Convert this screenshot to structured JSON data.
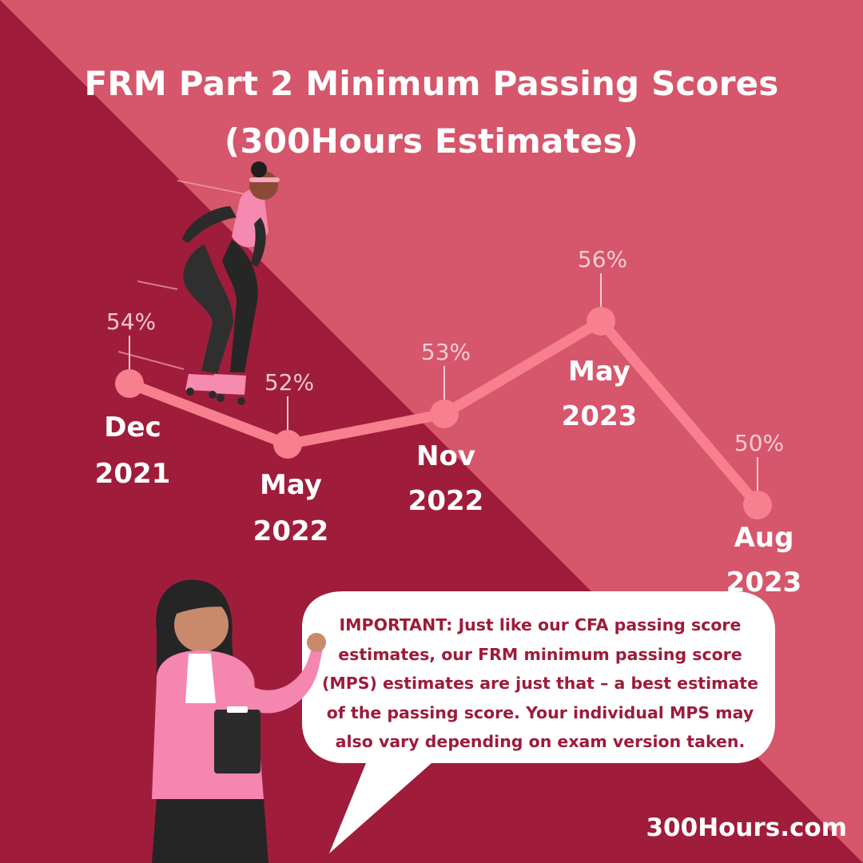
{
  "title_lines": [
    "FRM Part 2 Minimum Passing Scores",
    "(300Hours Estimates)"
  ],
  "colors": {
    "dark_bg": "#9f1d3b",
    "light_bg": "#d6566b",
    "line": "#f87f8e",
    "bubble": "#ffffff",
    "bubble_text": "#9d1b3a"
  },
  "chart_data": {
    "type": "line",
    "title": "FRM Part 2 Minimum Passing Scores (300Hours Estimates)",
    "xlabel": "",
    "ylabel": "",
    "grid": false,
    "categories": [
      {
        "line1": "Dec",
        "line2": "2021"
      },
      {
        "line1": "May",
        "line2": "2022"
      },
      {
        "line1": "Nov",
        "line2": "2022"
      },
      {
        "line1": "May",
        "line2": "2023"
      },
      {
        "line1": "Aug",
        "line2": "2023"
      }
    ],
    "values": [
      54,
      52,
      53,
      56,
      50
    ],
    "value_labels": [
      "54%",
      "52%",
      "53%",
      "56%",
      "50%"
    ]
  },
  "note": "IMPORTANT: Just like our CFA passing score estimates, our FRM minimum passing score (MPS) estimates are just that – a best estimate of the passing score. Your individual MPS may also vary depending on exam version taken.",
  "brand": "300Hours.com",
  "icons": [
    "rollerskater-illustration",
    "presenter-woman-illustration",
    "speech-bubble"
  ]
}
